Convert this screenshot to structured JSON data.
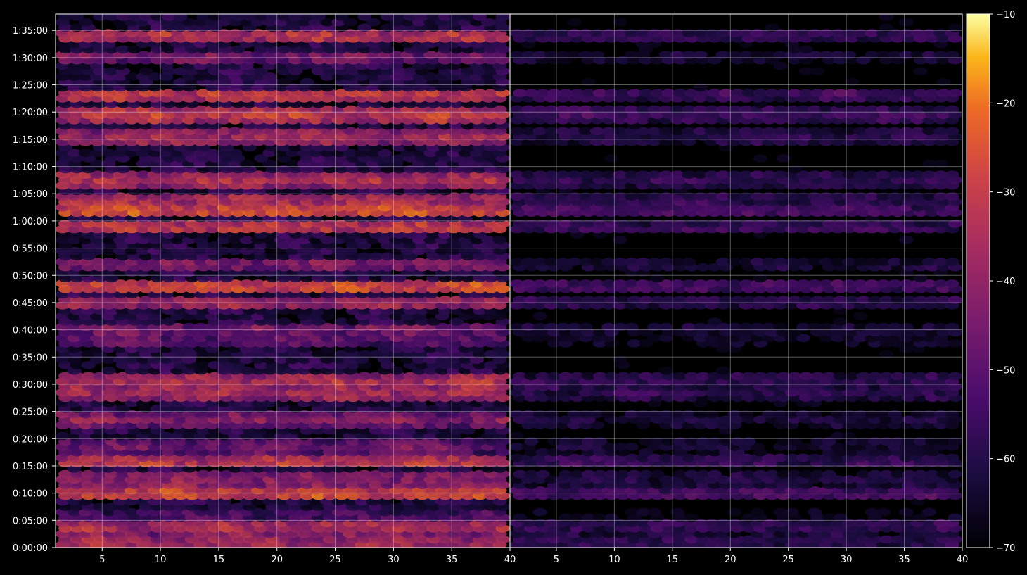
{
  "chart_data": {
    "type": "heatmap",
    "title": "",
    "xlabel": "",
    "ylabel": "",
    "panels": [
      {
        "name": "",
        "xlim": [
          1,
          40
        ],
        "x_ticks": [
          "5",
          "10",
          "15",
          "20",
          "25",
          "30",
          "35"
        ],
        "x_end_label": "40",
        "intensity": 1.0
      },
      {
        "name": "",
        "xlim": [
          1,
          40
        ],
        "x_ticks": [
          "5",
          "10",
          "15",
          "20",
          "25",
          "30",
          "35"
        ],
        "x_end_label": "40",
        "intensity": 0.55
      }
    ],
    "y_ticks": [
      "0:00:00",
      "0:05:00",
      "0:10:00",
      "0:15:00",
      "0:20:00",
      "0:25:00",
      "0:30:00",
      "0:35:00",
      "0:40:00",
      "0:45:00",
      "0:50:00",
      "0:55:00",
      "1:00:00",
      "1:05:00",
      "1:10:00",
      "1:15:00",
      "1:20:00",
      "1:25:00",
      "1:30:00",
      "1:35:00"
    ],
    "ylim_seconds": [
      0,
      5880
    ],
    "grid": true,
    "colormap": "inferno",
    "colorbar": {
      "ticks": [
        "−10",
        "−20",
        "−30",
        "−40",
        "−50",
        "−60",
        "−70"
      ],
      "range": [
        -70,
        -10
      ]
    },
    "left_panel_profile": [
      {
        "t": 0.01,
        "v": -35
      },
      {
        "t": 0.03,
        "v": -40
      },
      {
        "t": 0.04,
        "v": -34
      },
      {
        "t": 0.06,
        "v": -52
      },
      {
        "t": 0.1,
        "v": -26
      },
      {
        "t": 0.11,
        "v": -38
      },
      {
        "t": 0.13,
        "v": -40
      },
      {
        "t": 0.16,
        "v": -32
      },
      {
        "t": 0.19,
        "v": -45
      },
      {
        "t": 0.24,
        "v": -42
      },
      {
        "t": 0.29,
        "v": -36
      },
      {
        "t": 0.31,
        "v": -33
      },
      {
        "t": 0.39,
        "v": -48
      },
      {
        "t": 0.41,
        "v": -44
      },
      {
        "t": 0.46,
        "v": -36
      },
      {
        "t": 0.49,
        "v": -26
      },
      {
        "t": 0.53,
        "v": -42
      },
      {
        "t": 0.6,
        "v": -30
      },
      {
        "t": 0.63,
        "v": -26
      },
      {
        "t": 0.65,
        "v": -34
      },
      {
        "t": 0.69,
        "v": -34
      },
      {
        "t": 0.77,
        "v": -36
      },
      {
        "t": 0.81,
        "v": -30
      },
      {
        "t": 0.85,
        "v": -30
      },
      {
        "t": 0.92,
        "v": -44
      },
      {
        "t": 0.96,
        "v": -32
      }
    ]
  }
}
